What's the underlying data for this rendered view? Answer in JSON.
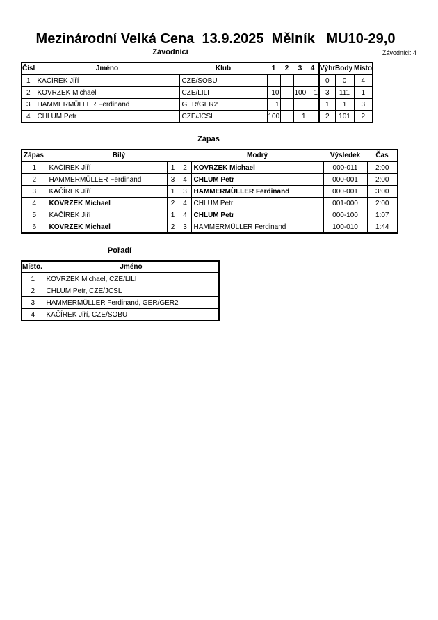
{
  "title": "Mezinárodní Velká Cena  13.9.2025  Mělník   MU10-29,0",
  "competitors": {
    "heading": "Závodníci",
    "count_label": "Závodníci: 4",
    "columns": [
      "Číslo",
      "Jméno",
      "Klub",
      "1",
      "2",
      "3",
      "4",
      "Výhra",
      "Body",
      "Místo."
    ],
    "rows": [
      {
        "no": "1",
        "name": "KAČÍREK Jiří",
        "club": "CZE/SOBU",
        "s1": "",
        "s2": "",
        "s3": "",
        "s4": "",
        "wins": "0",
        "points": "0",
        "place": "4"
      },
      {
        "no": "2",
        "name": "KOVRZEK Michael",
        "club": "CZE/LILI",
        "s1": "10",
        "s2": "",
        "s3": "100",
        "s4": "1",
        "wins": "3",
        "points": "111",
        "place": "1"
      },
      {
        "no": "3",
        "name": "HAMMERMÜLLER Ferdinand",
        "club": "GER/GER2",
        "s1": "1",
        "s2": "",
        "s3": "",
        "s4": "",
        "wins": "1",
        "points": "1",
        "place": "3"
      },
      {
        "no": "4",
        "name": "CHLUM Petr",
        "club": "CZE/JCSL",
        "s1": "100",
        "s2": "",
        "s3": "1",
        "s4": "",
        "wins": "2",
        "points": "101",
        "place": "2"
      }
    ]
  },
  "matches": {
    "heading": "Zápas",
    "columns": [
      "Zápas",
      "Bílý",
      "Modrý",
      "Výsledek",
      "Čas"
    ],
    "rows": [
      {
        "no": "1",
        "white": "KAČÍREK Jiří",
        "white_no": "1",
        "blue_no": "2",
        "blue": "KOVRZEK Michael",
        "winner": "blue",
        "result": "000-011",
        "time": "2:00"
      },
      {
        "no": "2",
        "white": "HAMMERMÜLLER Ferdinand",
        "white_no": "3",
        "blue_no": "4",
        "blue": "CHLUM Petr",
        "winner": "blue",
        "result": "000-001",
        "time": "2:00"
      },
      {
        "no": "3",
        "white": "KAČÍREK Jiří",
        "white_no": "1",
        "blue_no": "3",
        "blue": "HAMMERMÜLLER Ferdinand",
        "winner": "blue",
        "result": "000-001",
        "time": "3:00"
      },
      {
        "no": "4",
        "white": "KOVRZEK Michael",
        "white_no": "2",
        "blue_no": "4",
        "blue": "CHLUM Petr",
        "winner": "white",
        "result": "001-000",
        "time": "2:00"
      },
      {
        "no": "5",
        "white": "KAČÍREK Jiří",
        "white_no": "1",
        "blue_no": "4",
        "blue": "CHLUM Petr",
        "winner": "blue",
        "result": "000-100",
        "time": "1:07"
      },
      {
        "no": "6",
        "white": "KOVRZEK Michael",
        "white_no": "2",
        "blue_no": "3",
        "blue": "HAMMERMÜLLER Ferdinand",
        "winner": "white",
        "result": "100-010",
        "time": "1:44"
      }
    ]
  },
  "ranking": {
    "heading": "Pořadí",
    "columns": [
      "Místo.",
      "Jméno"
    ],
    "rows": [
      {
        "place": "1",
        "name": "KOVRZEK Michael, CZE/LILI"
      },
      {
        "place": "2",
        "name": "CHLUM Petr, CZE/JCSL"
      },
      {
        "place": "3",
        "name": "HAMMERMÜLLER Ferdinand, GER/GER2"
      },
      {
        "place": "4",
        "name": "KAČÍREK Jiří, CZE/SOBU"
      }
    ]
  }
}
